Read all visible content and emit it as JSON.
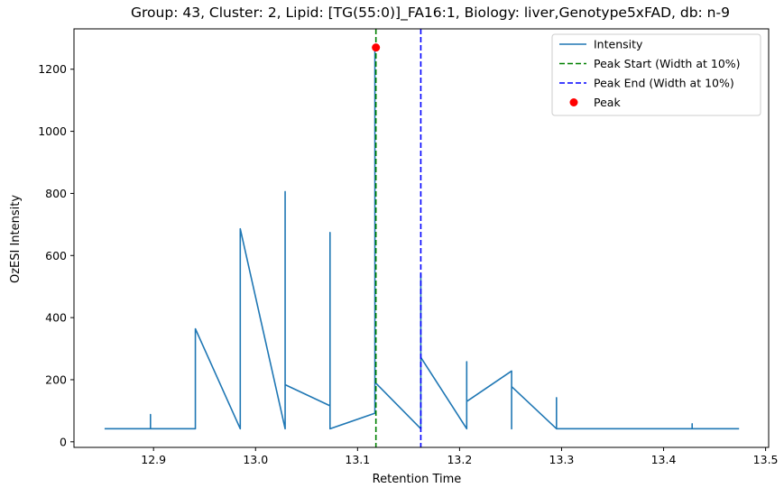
{
  "chart_data": {
    "type": "line",
    "title": "Group: 43, Cluster: 2, Lipid: [TG(55:0)]_FA16:1, Biology: liver,Genotype5xFAD, db: n-9",
    "xlabel": "Retention Time",
    "ylabel": "OzESI Intensity",
    "xlim": [
      12.822,
      13.503
    ],
    "ylim": [
      -18,
      1330
    ],
    "x_ticks": [
      12.9,
      13.0,
      13.1,
      13.2,
      13.3,
      13.4,
      13.5
    ],
    "x_tick_labels": [
      "12.9",
      "13.0",
      "13.1",
      "13.2",
      "13.3",
      "13.4",
      "13.5"
    ],
    "y_ticks": [
      0,
      200,
      400,
      600,
      800,
      1000,
      1200
    ],
    "y_tick_labels": [
      "0",
      "200",
      "400",
      "600",
      "800",
      "1000",
      "1200"
    ],
    "grid": false,
    "legend_position": "top-right",
    "legend": [
      {
        "label": "Intensity",
        "style": "solid",
        "color": "#1f77b4"
      },
      {
        "label": "Peak Start (Width at 10%)",
        "style": "dashed",
        "color": "#008000"
      },
      {
        "label": "Peak End (Width at 10%)",
        "style": "dashed",
        "color": "#0000ff"
      },
      {
        "label": "Peak",
        "style": "marker",
        "color": "#ff0000"
      }
    ],
    "series": [
      {
        "name": "Intensity",
        "color": "#1f77b4",
        "x": [
          12.852,
          12.897,
          12.897,
          12.897,
          12.941,
          12.941,
          12.941,
          12.985,
          12.985,
          13.029,
          13.029,
          13.029,
          13.029,
          13.073,
          13.073,
          13.073,
          13.073,
          13.117,
          13.117,
          13.117,
          13.117,
          13.162,
          13.162,
          13.162,
          13.207,
          13.207,
          13.207,
          13.251,
          13.251,
          13.251,
          13.251,
          13.295,
          13.295,
          13.295,
          13.428,
          13.428,
          13.428,
          13.474
        ],
        "y": [
          42,
          42,
          88,
          42,
          42,
          42,
          364,
          42,
          686,
          42,
          85,
          806,
          184,
          116,
          42,
          674,
          42,
          92,
          1270,
          192,
          192,
          42,
          540,
          272,
          42,
          258,
          130,
          228,
          42,
          178,
          178,
          42,
          142,
          42,
          42,
          58,
          42,
          42
        ]
      }
    ],
    "vlines": [
      {
        "name": "Peak Start (Width at 10%)",
        "x": 13.118,
        "color": "#008000",
        "style": "dashed"
      },
      {
        "name": "Peak End (Width at 10%)",
        "x": 13.162,
        "color": "#0000ff",
        "style": "dashed"
      }
    ],
    "points": [
      {
        "name": "Peak",
        "x": 13.118,
        "y": 1270,
        "color": "#ff0000"
      }
    ]
  }
}
